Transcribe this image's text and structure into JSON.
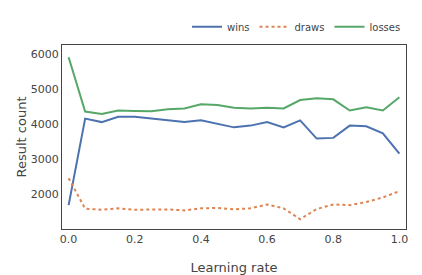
{
  "chart_data": {
    "type": "line",
    "xlabel": "Learning rate",
    "ylabel": "Result count",
    "x": [
      0.0,
      0.05,
      0.1,
      0.15,
      0.2,
      0.25,
      0.3,
      0.35,
      0.4,
      0.45,
      0.5,
      0.55,
      0.6,
      0.65,
      0.7,
      0.75,
      0.8,
      0.85,
      0.9,
      0.95,
      1.0
    ],
    "series": [
      {
        "name": "wins",
        "color": "#4c72b0",
        "line_style": "solid",
        "values": [
          1680,
          4150,
          4050,
          4200,
          4200,
          4150,
          4080,
          4050,
          4100,
          4000,
          3900,
          3950,
          4050,
          3900,
          4100,
          3580,
          3600,
          3950,
          3930,
          3730,
          3150
        ]
      },
      {
        "name": "draws",
        "color": "#dd8452",
        "line_style": "dotted",
        "values": [
          2450,
          1580,
          1550,
          1590,
          1550,
          1560,
          1560,
          1530,
          1590,
          1600,
          1560,
          1590,
          1700,
          1590,
          1280,
          1570,
          1700,
          1680,
          1770,
          1900,
          2080
        ]
      },
      {
        "name": "losses",
        "color": "#55a868",
        "line_style": "solid",
        "values": [
          5900,
          4350,
          4280,
          4380,
          4370,
          4360,
          4420,
          4440,
          4560,
          4540,
          4460,
          4440,
          4460,
          4440,
          4680,
          4730,
          4700,
          4380,
          4470,
          4380,
          4760
        ]
      }
    ],
    "xlim": [
      -0.02,
      1.02
    ],
    "ylim": [
      1000,
      6250
    ],
    "xticks": [
      {
        "value": 0,
        "label": "0.0"
      },
      0.2,
      0.4,
      0.6,
      0.8,
      {
        "value": 1,
        "label": "1.0"
      }
    ],
    "yticks": [
      2000,
      3000,
      4000,
      5000,
      6000
    ],
    "grid": false,
    "legend": "upper right"
  }
}
